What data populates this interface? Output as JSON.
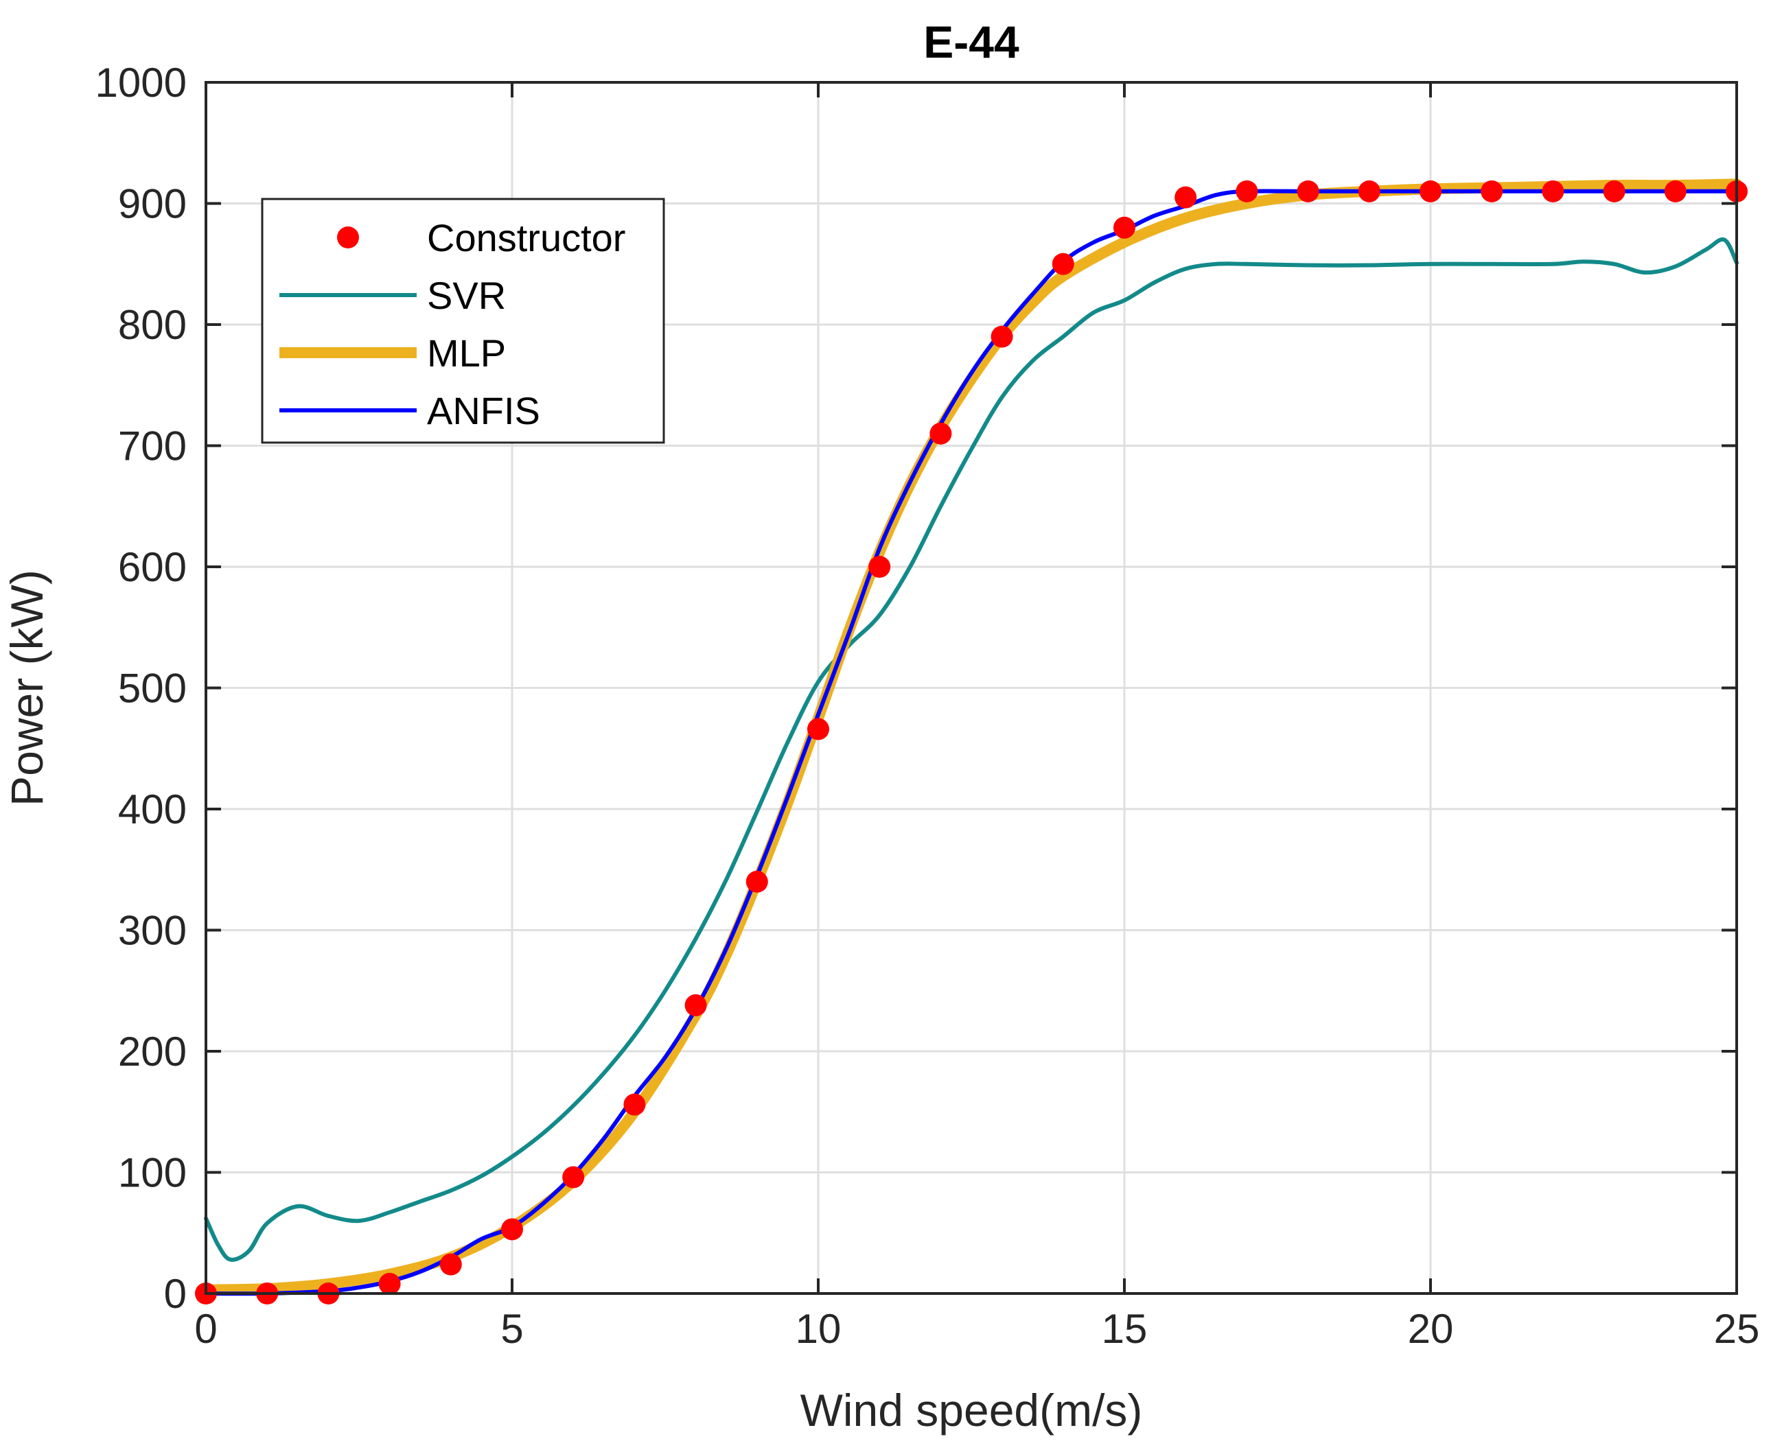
{
  "chart_data": {
    "type": "line",
    "title": "E-44",
    "xlabel": "Wind speed(m/s)",
    "ylabel": "Power (kW)",
    "xlim": [
      0,
      25
    ],
    "ylim": [
      0,
      1000
    ],
    "xticks": [
      0,
      5,
      10,
      15,
      20,
      25
    ],
    "yticks": [
      0,
      100,
      200,
      300,
      400,
      500,
      600,
      700,
      800,
      900,
      1000
    ],
    "grid": true,
    "legend_position": "top-left",
    "legend": [
      "Constructor",
      "SVR",
      "MLP",
      "ANFIS"
    ],
    "series": [
      {
        "name": "Constructor",
        "style": "markers",
        "color": "#ff0000",
        "x": [
          0,
          1,
          2,
          3,
          4,
          5,
          6,
          7,
          8,
          9,
          10,
          11,
          12,
          13,
          14,
          15,
          16,
          17,
          18,
          19,
          20,
          21,
          22,
          23,
          24,
          25
        ],
        "y": [
          0,
          0,
          0,
          8,
          24,
          53,
          96,
          156,
          238,
          340,
          466,
          600,
          710,
          790,
          850,
          880,
          905,
          910,
          910,
          910,
          910,
          910,
          910,
          910,
          910,
          910
        ]
      },
      {
        "name": "SVR",
        "style": "line",
        "color": "#138a8a",
        "x": [
          0,
          0.2,
          0.4,
          0.7,
          1,
          1.5,
          2,
          2.5,
          3,
          3.5,
          4,
          4.5,
          5,
          5.5,
          6,
          6.5,
          7,
          7.5,
          8,
          8.5,
          9,
          9.5,
          10,
          10.5,
          11,
          11.5,
          12,
          12.5,
          13,
          13.5,
          14,
          14.5,
          15,
          15.5,
          16,
          16.5,
          17,
          18,
          19,
          20,
          21,
          22,
          22.5,
          23,
          23.5,
          24,
          24.5,
          24.8,
          25
        ],
        "y": [
          62,
          40,
          28,
          35,
          58,
          72,
          64,
          60,
          67,
          76,
          85,
          97,
          113,
          132,
          155,
          182,
          213,
          250,
          293,
          342,
          398,
          455,
          505,
          535,
          560,
          600,
          650,
          697,
          740,
          770,
          790,
          810,
          820,
          835,
          846,
          850,
          850,
          849,
          849,
          850,
          850,
          850,
          852,
          850,
          843,
          848,
          862,
          870,
          851
        ]
      },
      {
        "name": "MLP",
        "style": "thick-line",
        "color": "#edb120",
        "x": [
          0,
          1,
          2,
          3,
          4,
          5,
          6,
          7,
          8,
          8.5,
          9,
          9.5,
          10,
          10.5,
          11,
          11.5,
          12,
          12.5,
          13,
          13.5,
          14,
          15,
          16,
          17,
          18,
          19,
          20,
          21,
          22,
          23,
          24,
          25
        ],
        "y": [
          3,
          4,
          8,
          16,
          30,
          55,
          93,
          150,
          230,
          280,
          340,
          405,
          475,
          547,
          612,
          668,
          715,
          755,
          790,
          818,
          840,
          868,
          888,
          900,
          907,
          910,
          912,
          913,
          914,
          915,
          915,
          916
        ]
      },
      {
        "name": "ANFIS",
        "style": "line",
        "color": "#0000ff",
        "x": [
          0,
          1,
          2,
          2.5,
          3,
          3.5,
          4,
          4.5,
          5,
          5.5,
          6,
          6.5,
          7,
          7.5,
          8,
          8.5,
          9,
          9.5,
          10,
          10.5,
          11,
          11.5,
          12,
          12.5,
          13,
          13.5,
          14,
          14.5,
          15,
          15.5,
          16,
          16.5,
          17,
          18,
          19,
          20,
          21,
          22,
          23,
          24,
          25
        ],
        "y": [
          0,
          0,
          2,
          5,
          10,
          18,
          30,
          45,
          55,
          74,
          98,
          128,
          163,
          195,
          235,
          285,
          345,
          410,
          478,
          545,
          615,
          670,
          718,
          760,
          795,
          825,
          852,
          868,
          878,
          890,
          898,
          907,
          910,
          910,
          910,
          910,
          910,
          910,
          910,
          910,
          910
        ]
      }
    ]
  }
}
